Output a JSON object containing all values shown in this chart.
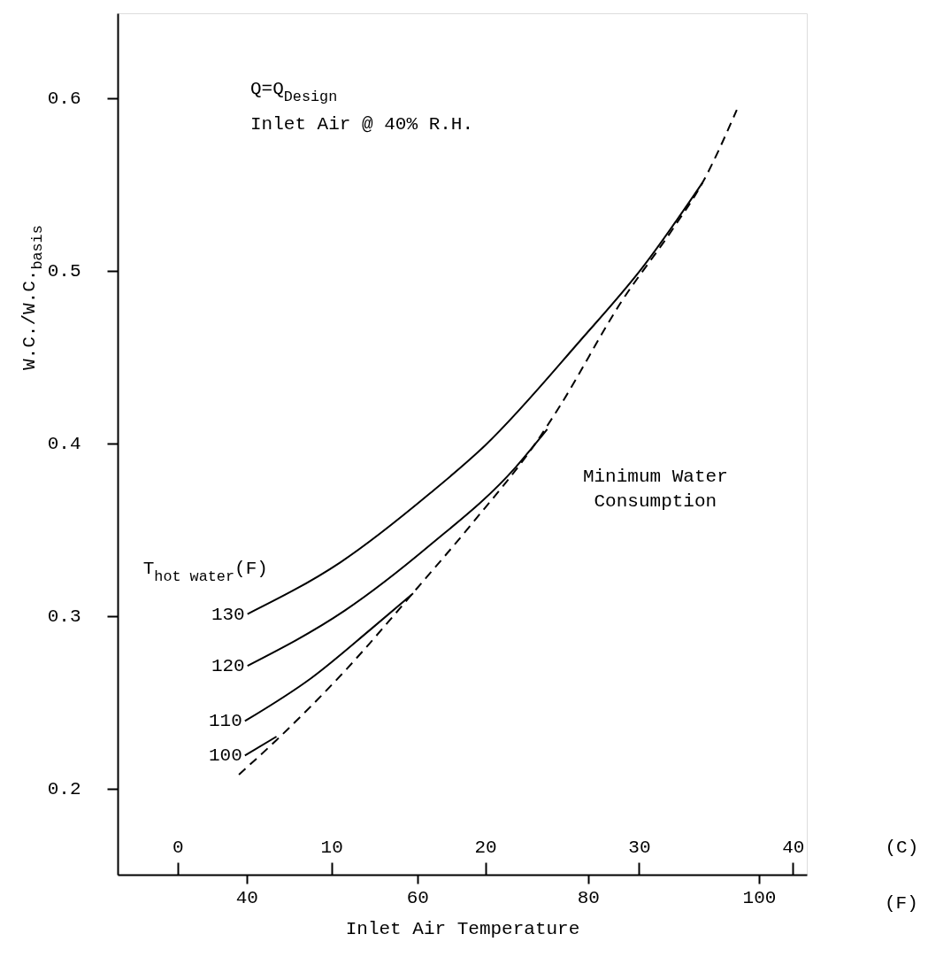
{
  "chart_data": {
    "type": "line",
    "annotations": [
      "Q=Q$_{Design}$",
      "Inlet Air @ 40% R.H.",
      "(F)"
    ],
    "xlabel": "Inlet Air Temperature",
    "ylabel": "W.C./W.C.$_{basis}$",
    "x2label": "(C)",
    "legend_title": "T$_{hot water}$(F)",
    "xlim": [
      24.9,
      105.6
    ],
    "xticks": [
      40,
      60,
      80,
      100
    ],
    "x2lim": [
      -3.9,
      40.9
    ],
    "x2ticks": [
      0,
      10,
      20,
      30,
      40
    ],
    "ylim": [
      0.15,
      0.649
    ],
    "yticks": [
      0.2,
      0.3,
      0.4,
      0.5,
      0.6
    ],
    "grid": false,
    "marker": "none",
    "series": [
      {
        "name": "130",
        "color": "#000000",
        "line_style": "solid",
        "x": [
          40.1,
          51.0,
          61.5,
          68.0,
          79.0,
          86.4,
          93.4
        ],
        "values": [
          0.301,
          0.331,
          0.371,
          0.399,
          0.459,
          0.502,
          0.551
        ]
      },
      {
        "name": "120",
        "color": "#000000",
        "line_style": "solid",
        "x": [
          40.1,
          51.5,
          61.5,
          71.5,
          74.7,
          75.2
        ],
        "values": [
          0.271,
          0.303,
          0.341,
          0.386,
          0.405,
          0.408
        ]
      },
      {
        "name": "110",
        "color": "#000000",
        "line_style": "solid",
        "x": [
          39.8,
          47.6,
          54.5,
          59.5
        ],
        "values": [
          0.239,
          0.264,
          0.292,
          0.313
        ]
      },
      {
        "name": "100",
        "color": "#000000",
        "line_style": "solid",
        "x": [
          39.8,
          43.5
        ],
        "values": [
          0.219,
          0.23
        ]
      },
      {
        "name": "Minimum Water\nConsumption",
        "color": "#000000",
        "line_style": "dashed",
        "x": [
          39.1,
          43.5,
          51.5,
          59.8,
          66.5,
          74.4,
          76.5,
          83.9,
          89.9,
          93.4,
          97.4
        ],
        "values": [
          0.208,
          0.228,
          0.268,
          0.315,
          0.354,
          0.404,
          0.42,
          0.482,
          0.524,
          0.551,
          0.593
        ]
      }
    ]
  }
}
